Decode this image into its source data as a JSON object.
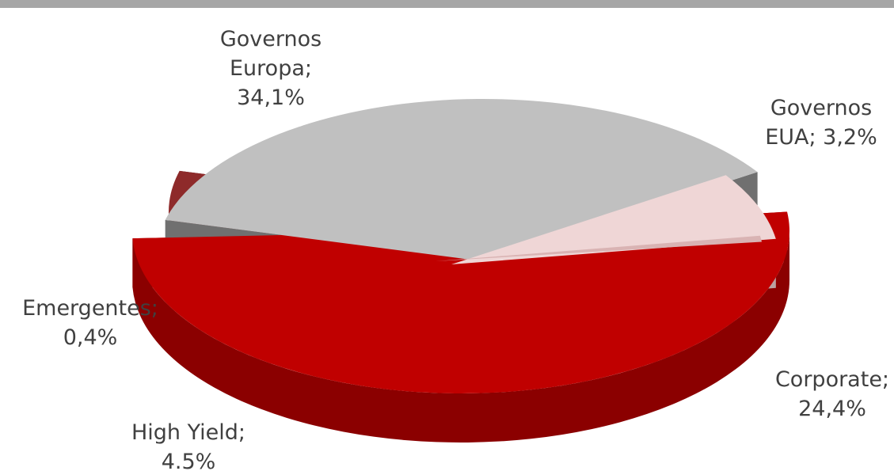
{
  "chart_data": {
    "type": "pie",
    "style": "3d-exploded",
    "slices": [
      {
        "name": "Governos Europa",
        "value": 34.1,
        "label": [
          "Governos",
          "Europa;",
          "34,1%"
        ],
        "color": "#c00000",
        "side_color": "#8b0000"
      },
      {
        "name": "Governos EUA",
        "value": 3.2,
        "label": [
          "Governos",
          "EUA; 3,2%"
        ],
        "color": "#8e2a2a",
        "side_color": "#4a1414"
      },
      {
        "name": "Corporate",
        "value": 24.4,
        "label": [
          "Corporate;",
          "24,4%"
        ],
        "color": "#c0c0c0",
        "side_color": "#707070"
      },
      {
        "name": "High Yield",
        "value": 4.5,
        "label": [
          "High Yield;",
          "4.5%"
        ],
        "color": "#efd6d6",
        "side_color": "#bca2a2"
      },
      {
        "name": "Emergentes",
        "value": 0.4,
        "label": [
          "Emergentes;",
          "0,4%"
        ],
        "color": "#d9b3b3",
        "side_color": "#b08888"
      }
    ]
  }
}
